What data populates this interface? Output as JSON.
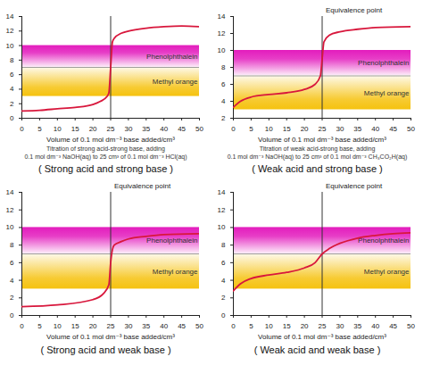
{
  "chart_data": [
    {
      "type": "line",
      "title": "( Strong acid and strong base )",
      "subtitle": [
        "Titration of strong acid-strong base, adding",
        "0.1 mol dm⁻³ NaOH(aq) to 25 cm³ of 0.1 mol dm⁻³ HCl(aq)"
      ],
      "x_label": "Volume of 0.1 mol dm⁻³ base added/cm³",
      "x": [
        0,
        5,
        10,
        15,
        20,
        22,
        24,
        24.5,
        25,
        25.5,
        26,
        28,
        30,
        35,
        40,
        45,
        50
      ],
      "values": [
        1,
        1.1,
        1.3,
        1.5,
        1.9,
        2.3,
        3,
        3.5,
        7,
        10.5,
        11,
        11.7,
        12,
        12.4,
        12.6,
        12.7,
        12.6
      ],
      "color": "#d8173c",
      "equivalence_point": 25,
      "bands": [
        {
          "label": "Phenolphthalein",
          "range": [
            7,
            10
          ],
          "color": "#e31cbd"
        },
        {
          "label": "Methyl orange",
          "range": [
            3,
            7
          ],
          "color": "#f5c20f"
        }
      ],
      "xlim": [
        0,
        50
      ],
      "xticks": [
        0,
        5,
        10,
        15,
        20,
        25,
        30,
        35,
        40,
        45,
        50
      ],
      "ylim": [
        0,
        14
      ],
      "yticks": [
        0,
        2,
        4,
        6,
        8,
        10,
        12,
        14
      ]
    },
    {
      "type": "line",
      "title": "( Weak acid and strong base )",
      "subtitle": [
        "Titration of weak acid-strong base, adding",
        "0.1 mol dm⁻³ NaOH(aq) to 25 cm³ of 0.1 mol dm⁻³ CH₃CO₂H(aq)"
      ],
      "x_label": "Volume of 0.1 mol dm⁻³ base added/cm³",
      "annotation": "Equivalence point",
      "x": [
        0,
        2,
        5,
        10,
        15,
        20,
        23,
        24.5,
        25,
        25.5,
        27,
        30,
        35,
        40,
        50
      ],
      "values": [
        3.3,
        4,
        4.5,
        4.8,
        5,
        5.4,
        6,
        7,
        9,
        11,
        11.8,
        12.2,
        12.5,
        12.7,
        12.8
      ],
      "color": "#d8173c",
      "equivalence_point": 25,
      "bands": [
        {
          "label": "Phenolphthalein",
          "range": [
            7,
            10
          ],
          "color": "#e31cbd"
        },
        {
          "label": "Methyl orange",
          "range": [
            3,
            7
          ],
          "color": "#f5c20f"
        }
      ],
      "xlim": [
        0,
        50
      ],
      "xticks": [
        0,
        5,
        10,
        15,
        20,
        25,
        30,
        35,
        40,
        45,
        50
      ],
      "ylim": [
        2,
        14
      ],
      "yticks": [
        2,
        4,
        6,
        8,
        10,
        12,
        14
      ]
    },
    {
      "type": "line",
      "title": "( Strong acid and weak base )",
      "x_label": "Volume of 0.1 mol dm⁻³ base added/cm³",
      "annotation": "Equivalence point",
      "x": [
        0,
        10,
        20,
        23,
        24.5,
        25,
        25.5,
        26,
        28,
        30,
        35,
        40,
        50
      ],
      "values": [
        1,
        1.2,
        1.8,
        2.5,
        3.5,
        6,
        7.5,
        8,
        8.4,
        8.7,
        9,
        9.2,
        9.3
      ],
      "color": "#d8173c",
      "equivalence_point": 25,
      "bands": [
        {
          "label": "Phenolphthalein",
          "range": [
            7,
            10
          ],
          "color": "#e31cbd"
        },
        {
          "label": "Methyl orange",
          "range": [
            3,
            7
          ],
          "color": "#f5c20f"
        }
      ],
      "xlim": [
        0,
        50
      ],
      "xticks": [
        0,
        5,
        10,
        15,
        20,
        25,
        30,
        35,
        40,
        45,
        50
      ],
      "ylim": [
        0,
        14
      ],
      "yticks": [
        0,
        2,
        4,
        6,
        8,
        10,
        12,
        14
      ]
    },
    {
      "type": "line",
      "title": "( Weak acid and weak base )",
      "x_label": "Volume of 0.1 mol dm⁻³ base added/cm³",
      "annotation": "Equivalence point",
      "x": [
        0,
        2,
        5,
        10,
        15,
        20,
        23,
        25,
        27,
        30,
        35,
        40,
        45,
        50
      ],
      "values": [
        2.8,
        3.6,
        4.2,
        4.6,
        4.9,
        5.4,
        6,
        7,
        7.6,
        8.2,
        8.8,
        9.1,
        9.3,
        9.4
      ],
      "color": "#d8173c",
      "equivalence_point": 25,
      "bands": [
        {
          "label": "Phenolphthalein",
          "range": [
            7,
            10
          ],
          "color": "#e31cbd"
        },
        {
          "label": "Methyl orange",
          "range": [
            3,
            7
          ],
          "color": "#f5c20f"
        }
      ],
      "xlim": [
        0,
        50
      ],
      "xticks": [
        0,
        5,
        10,
        15,
        20,
        25,
        30,
        35,
        40,
        45,
        50
      ],
      "ylim": [
        0,
        14
      ],
      "yticks": [
        0,
        2,
        4,
        6,
        8,
        10,
        12,
        14
      ]
    }
  ]
}
